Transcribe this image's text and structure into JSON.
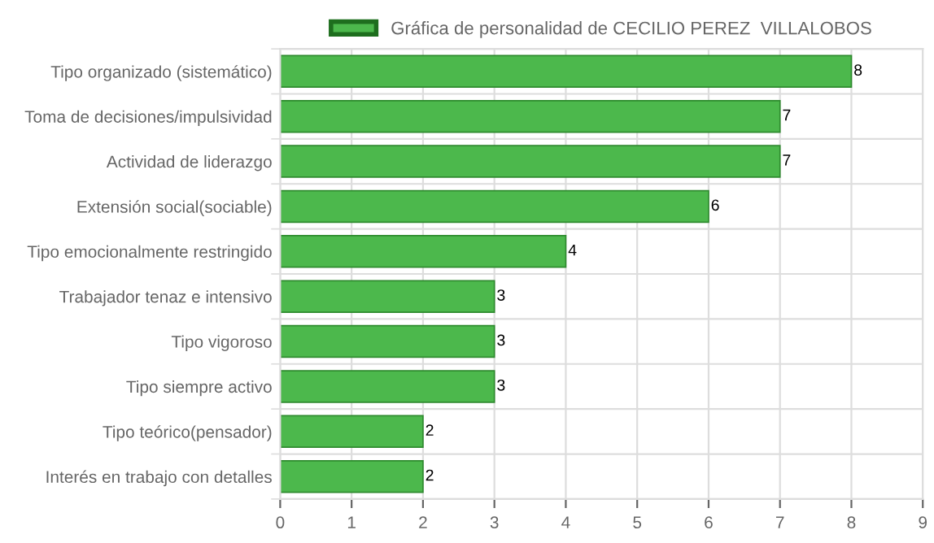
{
  "chart_data": {
    "type": "bar",
    "orientation": "horizontal",
    "categories": [
      "Tipo organizado (sistemático)",
      "Toma de decisiones/impulsividad",
      "Actividad de liderazgo",
      "Extensión social(sociable)",
      "Tipo emocionalmente restringido",
      "Trabajador tenaz e intensivo",
      "Tipo vigoroso",
      "Tipo siempre activo",
      "Tipo teórico(pensador)",
      "Interés en trabajo con detalles"
    ],
    "series": [
      {
        "name": "Gráfica de personalidad de CECILIO PEREZ  VILLALOBOS",
        "color": "#4cb84c",
        "values": [
          8,
          7,
          7,
          6,
          4,
          3,
          3,
          3,
          2,
          2
        ]
      }
    ],
    "xlim": [
      0,
      9
    ],
    "xticks": [
      0,
      1,
      2,
      3,
      4,
      5,
      6,
      7,
      8,
      9
    ],
    "grid": true,
    "legend": "top",
    "data_labels": true
  }
}
